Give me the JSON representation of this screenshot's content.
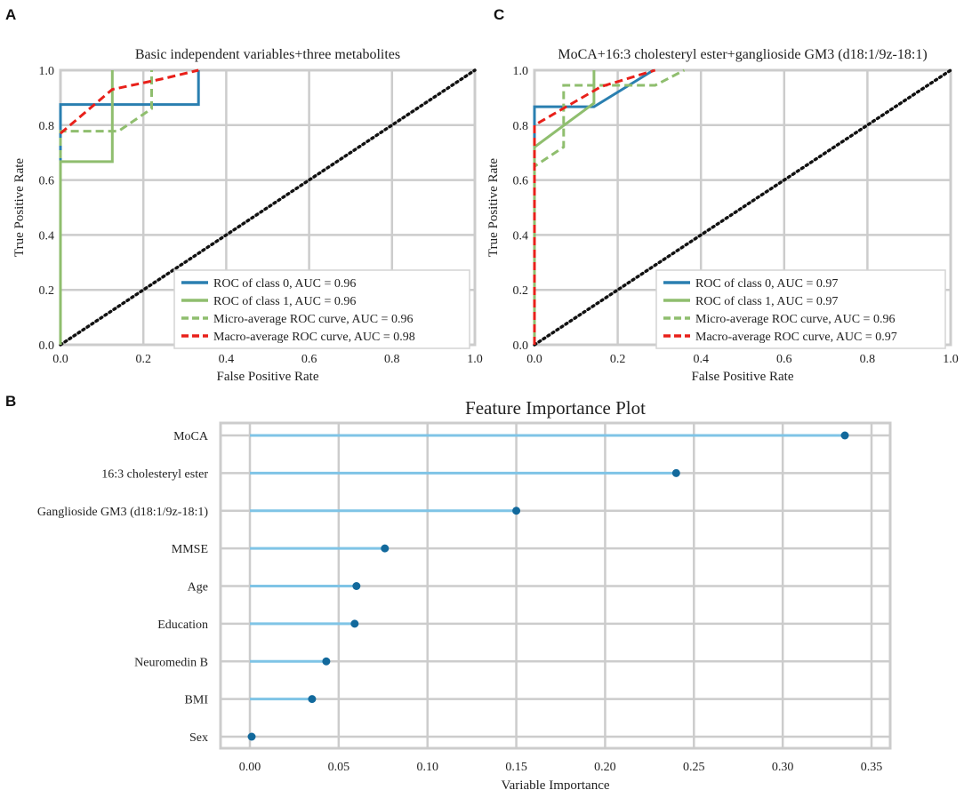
{
  "chart_data": [
    {
      "panel": "A",
      "type": "line",
      "title": "Basic independent variables+three metabolites",
      "xlabel": "False Positive Rate",
      "ylabel": "True Positive Rate",
      "xlim": [
        0,
        1
      ],
      "ylim": [
        0,
        1
      ],
      "xticks": [
        "0.0",
        "0.2",
        "0.4",
        "0.6",
        "0.8",
        "1.0"
      ],
      "yticks": [
        "0.0",
        "0.2",
        "0.4",
        "0.6",
        "0.8",
        "1.0"
      ],
      "grid": true,
      "legend_position": "bottom-right",
      "series": [
        {
          "name": "ROC of class 0, AUC = 0.96",
          "color": "#2a7fb0",
          "dash": "solid",
          "x": [
            0,
            0,
            0.333,
            0.333
          ],
          "y": [
            0,
            0.875,
            0.875,
            1.0
          ]
        },
        {
          "name": "ROC of class 1, AUC = 0.96",
          "color": "#8fbe6e",
          "dash": "solid",
          "x": [
            0,
            0,
            0.125,
            0.125
          ],
          "y": [
            0,
            0.667,
            0.667,
            1.0
          ]
        },
        {
          "name": "Micro-average ROC curve, AUC = 0.96",
          "color": "#8fbe6e",
          "dash": "dashed",
          "x": [
            0,
            0,
            0.14,
            0.22,
            0.22
          ],
          "y": [
            0,
            0.778,
            0.778,
            0.86,
            1.0
          ]
        },
        {
          "name": "Macro-average ROC curve, AUC = 0.98",
          "color": "#e8201a",
          "dash": "dashed",
          "x": [
            0,
            0.125,
            0.25,
            0.333,
            0.333
          ],
          "y": [
            0.77,
            0.93,
            0.97,
            1.0,
            1.0
          ]
        }
      ],
      "diagonal": {
        "x": [
          0,
          1
        ],
        "y": [
          0,
          1
        ],
        "color": "#111111"
      }
    },
    {
      "panel": "C",
      "type": "line",
      "title": "MoCA+16:3 cholesteryl ester+ganglioside GM3 (d18:1/9z-18:1)",
      "xlabel": "False Positive Rate",
      "ylabel": "True Positive Rate",
      "xlim": [
        0,
        1
      ],
      "ylim": [
        0,
        1
      ],
      "xticks": [
        "0.0",
        "0.2",
        "0.4",
        "0.6",
        "0.8",
        "1.0"
      ],
      "yticks": [
        "0.0",
        "0.2",
        "0.4",
        "0.6",
        "0.8",
        "1.0"
      ],
      "grid": true,
      "legend_position": "bottom-right",
      "series": [
        {
          "name": "ROC of class 0, AUC = 0.97",
          "color": "#2a7fb0",
          "dash": "solid",
          "x": [
            0,
            0,
            0.143,
            0.286
          ],
          "y": [
            0,
            0.867,
            0.867,
            1.0
          ]
        },
        {
          "name": "ROC of class 1, AUC = 0.97",
          "color": "#8fbe6e",
          "dash": "solid",
          "x": [
            0,
            0,
            0.143,
            0.143
          ],
          "y": [
            0,
            0.72,
            0.88,
            1.0
          ]
        },
        {
          "name": "Micro-average ROC curve, AUC = 0.96",
          "color": "#8fbe6e",
          "dash": "dashed",
          "x": [
            0,
            0,
            0.07,
            0.07,
            0.29,
            0.36
          ],
          "y": [
            0,
            0.65,
            0.72,
            0.945,
            0.945,
            1.0
          ]
        },
        {
          "name": "Macro-average ROC curve, AUC = 0.97",
          "color": "#e8201a",
          "dash": "dashed",
          "x": [
            0,
            0,
            0.16,
            0.29
          ],
          "y": [
            0,
            0.8,
            0.94,
            1.0
          ]
        }
      ],
      "diagonal": {
        "x": [
          0,
          1
        ],
        "y": [
          0,
          1
        ],
        "color": "#111111"
      }
    },
    {
      "panel": "B",
      "type": "lollipop",
      "title": "Feature Importance Plot",
      "xlabel": "Variable Importance",
      "xlim": [
        0,
        0.35
      ],
      "xticks": [
        "0.00",
        "0.05",
        "0.10",
        "0.15",
        "0.20",
        "0.25",
        "0.30",
        "0.35"
      ],
      "grid": true,
      "stem_color": "#7fc4e6",
      "dot_color": "#12699c",
      "categories": [
        "MoCA",
        "16:3 cholesteryl ester",
        "Ganglioside GM3 (d18:1/9z-18:1)",
        "MMSE",
        "Age",
        "Education",
        "Neuromedin B",
        "BMI",
        "Sex"
      ],
      "values": [
        0.335,
        0.24,
        0.15,
        0.076,
        0.06,
        0.059,
        0.043,
        0.035,
        0.001
      ]
    }
  ]
}
